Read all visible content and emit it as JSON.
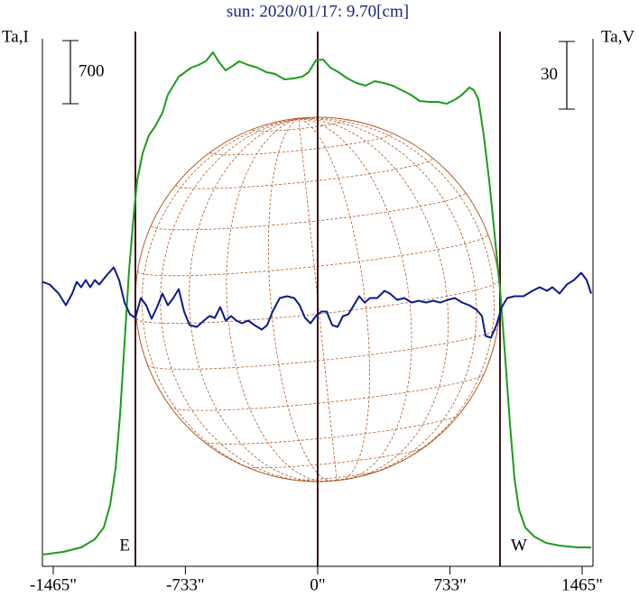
{
  "chart_data": {
    "type": "line",
    "title": "sun: 2020/01/17: 9.70[cm]",
    "y_label": "Ta,I",
    "y2_label": "Ta,V",
    "y_scale_bar": 700,
    "y2_scale_bar": 30,
    "xlim": [
      -1525,
      1525
    ],
    "xticks": [
      {
        "value": -1465,
        "label": "-1465\""
      },
      {
        "value": -733,
        "label": "-733\""
      },
      {
        "value": 0,
        "label": "0\""
      },
      {
        "value": 733,
        "label": "733\""
      },
      {
        "value": 1465,
        "label": "1465\""
      }
    ],
    "ylim": [
      0,
      5850
    ],
    "y2lim": [
      -117,
      117
    ],
    "vlines": [
      {
        "value": -1010,
        "label": "E"
      },
      {
        "value": 0
      },
      {
        "value": 1010,
        "label": "W"
      }
    ],
    "series": [
      {
        "name": "Ta,I",
        "color": "#1c9c1c",
        "x": [
          -1525,
          -1410,
          -1310,
          -1235,
          -1185,
          -1150,
          -1120,
          -1095,
          -1070,
          -1045,
          -1020,
          -1000,
          -970,
          -935,
          -900,
          -860,
          -830,
          -800,
          -770,
          -735,
          -700,
          -660,
          -620,
          -580,
          -550,
          -510,
          -470,
          -435,
          -385,
          -335,
          -285,
          -235,
          -185,
          -135,
          -85,
          -50,
          -10,
          30,
          70,
          115,
          165,
          215,
          265,
          315,
          365,
          415,
          465,
          515,
          565,
          615,
          665,
          715,
          765,
          800,
          840,
          865,
          890,
          920,
          950,
          980,
          1010,
          1040,
          1065,
          1090,
          1115,
          1150,
          1200,
          1265,
          1340,
          1440,
          1515
        ],
        "values": [
          130,
          160,
          210,
          300,
          430,
          680,
          1080,
          1680,
          2480,
          3280,
          3880,
          4280,
          4580,
          4780,
          4880,
          5030,
          5230,
          5330,
          5430,
          5480,
          5530,
          5560,
          5600,
          5700,
          5600,
          5500,
          5550,
          5600,
          5560,
          5530,
          5480,
          5460,
          5400,
          5410,
          5430,
          5480,
          5610,
          5620,
          5530,
          5480,
          5410,
          5360,
          5330,
          5380,
          5360,
          5330,
          5280,
          5230,
          5160,
          5150,
          5150,
          5130,
          5180,
          5230,
          5310,
          5280,
          5180,
          4780,
          4280,
          3680,
          3080,
          2280,
          1580,
          980,
          630,
          430,
          330,
          260,
          230,
          210,
          210
        ]
      },
      {
        "name": "Ta,V",
        "color": "#0b1a8c",
        "axis": "y2",
        "x": [
          -1525,
          -1485,
          -1435,
          -1395,
          -1360,
          -1335,
          -1310,
          -1285,
          -1260,
          -1235,
          -1210,
          -1170,
          -1130,
          -1100,
          -1070,
          -1040,
          -1010,
          -980,
          -950,
          -920,
          -890,
          -860,
          -830,
          -800,
          -770,
          -740,
          -710,
          -670,
          -630,
          -600,
          -570,
          -540,
          -510,
          -480,
          -450,
          -420,
          -385,
          -350,
          -310,
          -280,
          -250,
          -210,
          -170,
          -130,
          -100,
          -70,
          -40,
          -10,
          20,
          50,
          80,
          110,
          140,
          170,
          200,
          230,
          260,
          290,
          330,
          370,
          400,
          440,
          480,
          520,
          560,
          600,
          640,
          680,
          720,
          760,
          800,
          840,
          880,
          910,
          930,
          960,
          990,
          1020,
          1050,
          1090,
          1140,
          1190,
          1230,
          1270,
          1300,
          1340,
          1380,
          1420,
          1460,
          1490,
          1515
        ],
        "values": [
          9.2,
          8,
          4,
          -1.2,
          4,
          9.2,
          6.8,
          10,
          6.8,
          10,
          8,
          12,
          15.6,
          10,
          0,
          -5.2,
          -6.8,
          2,
          -1.2,
          -7.2,
          -2,
          4,
          -1.2,
          2,
          6,
          -4,
          -10,
          -10.8,
          -8,
          -6,
          -6.8,
          -2,
          -8,
          -6,
          -8,
          -9.2,
          -8,
          -10,
          -12,
          -10,
          -4,
          2,
          2.8,
          2,
          -1.2,
          -6.8,
          -9.2,
          -6,
          -4,
          -4,
          -10,
          -10.8,
          -6,
          -5.2,
          -1.2,
          2.8,
          0,
          2,
          2,
          5.2,
          4,
          1.2,
          2,
          0,
          0.8,
          0,
          0.8,
          0,
          1.2,
          2,
          0,
          -1.2,
          -3.2,
          -6,
          -14.8,
          -15.6,
          -10,
          -2,
          2,
          2.8,
          2.8,
          5.2,
          6.8,
          5.2,
          6.8,
          4,
          8,
          10,
          13.2,
          10,
          4
        ]
      }
    ]
  }
}
